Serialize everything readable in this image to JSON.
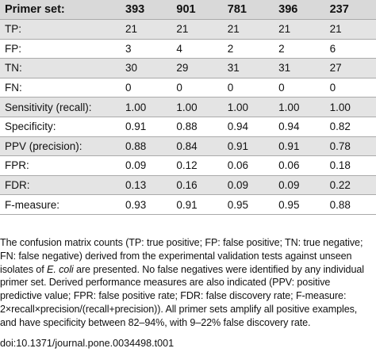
{
  "table": {
    "header": [
      "Primer set:",
      "393",
      "901",
      "781",
      "396",
      "237"
    ],
    "rows": [
      [
        "TP:",
        "21",
        "21",
        "21",
        "21",
        "21"
      ],
      [
        "FP:",
        "3",
        "4",
        "2",
        "2",
        "6"
      ],
      [
        "TN:",
        "30",
        "29",
        "31",
        "31",
        "27"
      ],
      [
        "FN:",
        "0",
        "0",
        "0",
        "0",
        "0"
      ],
      [
        "Sensitivity (recall):",
        "1.00",
        "1.00",
        "1.00",
        "1.00",
        "1.00"
      ],
      [
        "Specificity:",
        "0.91",
        "0.88",
        "0.94",
        "0.94",
        "0.82"
      ],
      [
        "PPV (precision):",
        "0.88",
        "0.84",
        "0.91",
        "0.91",
        "0.78"
      ],
      [
        "FPR:",
        "0.09",
        "0.12",
        "0.06",
        "0.06",
        "0.18"
      ],
      [
        "FDR:",
        "0.13",
        "0.16",
        "0.09",
        "0.09",
        "0.22"
      ],
      [
        "F-measure:",
        "0.93",
        "0.91",
        "0.95",
        "0.95",
        "0.88"
      ]
    ]
  },
  "caption": {
    "text_before_italic": "The confusion matrix counts (TP: true positive; FP: false positive; TN: true negative; FN: false negative) derived from the experimental validation tests against unseen isolates of ",
    "italic": "E. coli",
    "text_after_italic": " are presented. No false negatives were identified by any individual primer set. Derived performance measures are also indicated (PPV: positive predictive value; FPR: false positive rate; FDR: false discovery rate; F-measure: 2×recall×precision/(recall+precision)). All primer sets amplify all positive examples, and have specificity between 82–94%, with 9–22% false discovery rate."
  },
  "doi": "doi:10.1371/journal.pone.0034498.t001"
}
